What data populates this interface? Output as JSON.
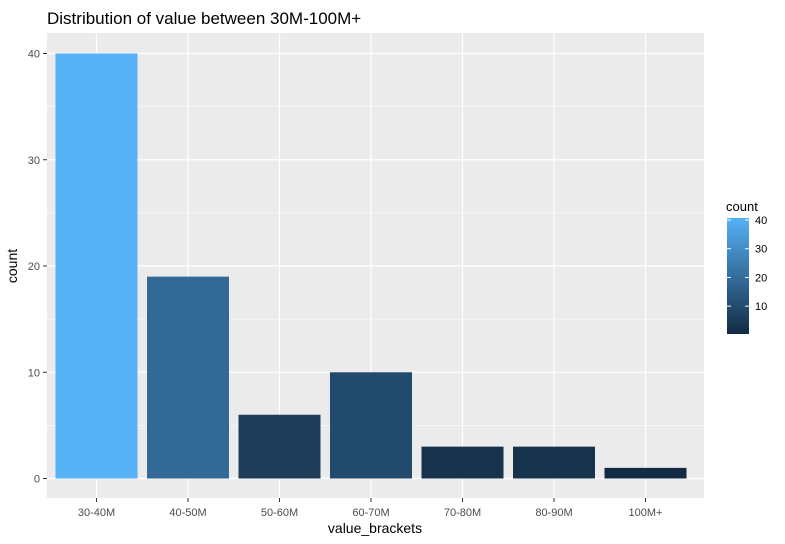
{
  "chart_data": {
    "type": "bar",
    "title": "Distribution of value between 30M-100M+",
    "xlabel": "value_brackets",
    "ylabel": "count",
    "categories": [
      "30-40M",
      "40-50M",
      "50-60M",
      "60-70M",
      "70-80M",
      "80-90M",
      "100M+"
    ],
    "values": [
      40,
      19,
      6,
      10,
      3,
      3,
      1
    ],
    "ylim": [
      0,
      42
    ],
    "yticks": [
      "0",
      "10",
      "20",
      "30",
      "40"
    ],
    "grid": true,
    "fill_scale": {
      "low_color": "#132B43",
      "high_color": "#56B1F7",
      "min": 1,
      "max": 40
    },
    "legend": {
      "title": "count",
      "position": "right",
      "ticks": [
        "10",
        "20",
        "30",
        "40"
      ]
    }
  }
}
